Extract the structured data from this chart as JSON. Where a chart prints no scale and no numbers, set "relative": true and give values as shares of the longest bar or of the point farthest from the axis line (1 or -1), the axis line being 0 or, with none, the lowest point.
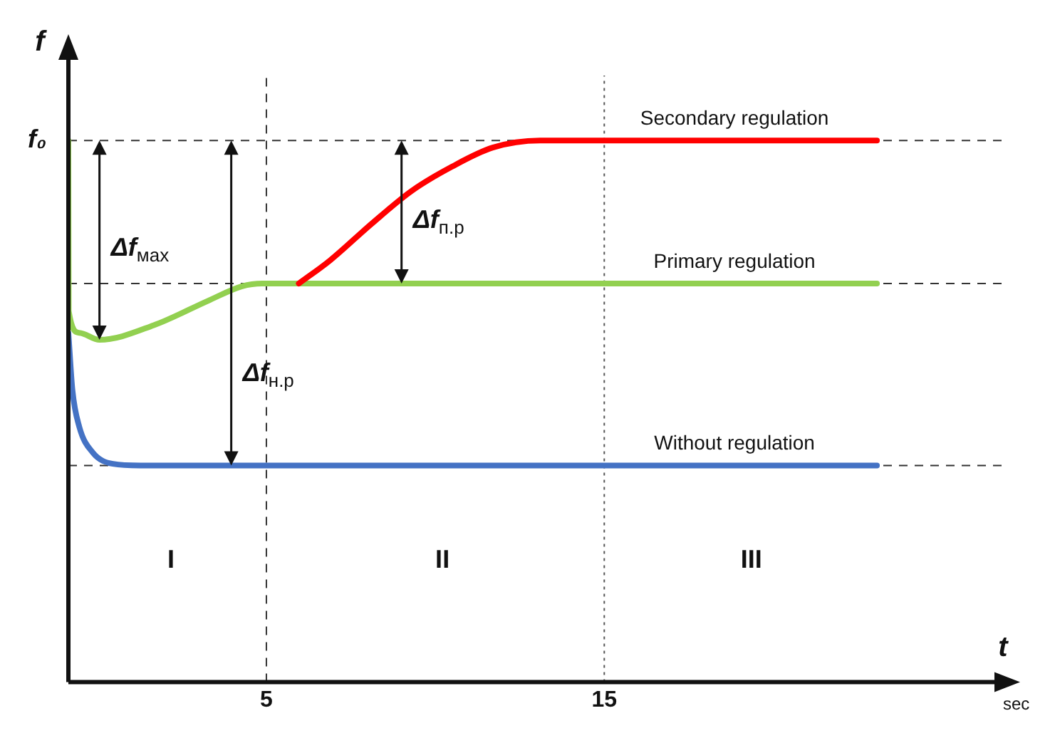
{
  "chart_data": {
    "type": "line",
    "relative": true,
    "xlabel": "t",
    "ylabel": "f",
    "xlim": [
      -0.86,
      26.8
    ],
    "xticks": [
      5,
      15
    ],
    "grid": false,
    "series": [
      {
        "name": "Secondary regulation",
        "color": "#ff0000",
        "x": [
          5.96,
          6.89,
          8.09,
          9.3,
          10.5,
          11.7,
          13.1,
          23.07
        ],
        "values": [
          0.736,
          0.779,
          0.845,
          0.907,
          0.952,
          0.987,
          1,
          1
        ]
      },
      {
        "name": "Primary regulation",
        "color": "#92d050",
        "x": [
          -0.86,
          -0.85,
          -0.54,
          0.06,
          1.67,
          3.27,
          4.28,
          4.88,
          23.07
        ],
        "values": [
          1,
          0.685,
          0.645,
          0.632,
          0.659,
          0.704,
          0.731,
          0.736,
          0.736
        ]
      },
      {
        "name": "Without regulation",
        "color": "#4472c4",
        "x": [
          -0.86,
          -0.74,
          -0.54,
          -0.14,
          0.46,
          1.27,
          23.07
        ],
        "values": [
          0.645,
          0.539,
          0.472,
          0.424,
          0.403,
          0.4,
          0.4
        ]
      }
    ],
    "ref_lines": [
      {
        "axis": "y",
        "value": 1,
        "label": "f₀",
        "color": "#333333",
        "line_style": "dashed"
      },
      {
        "axis": "y",
        "value": 0.736,
        "color": "#333333",
        "line_style": "dashed"
      },
      {
        "axis": "y",
        "value": 0.4,
        "color": "#333333",
        "line_style": "dashed"
      },
      {
        "axis": "x",
        "value": 5,
        "color": "#333333",
        "line_style": "dashed"
      },
      {
        "axis": "x",
        "value": 15,
        "color": "#555555",
        "line_style": "dotted"
      }
    ],
    "annotations": [
      {
        "text": "Δf$_{мах}$",
        "x": 0.06,
        "y": 0.632
      },
      {
        "text": "Δf$_{н.р}$",
        "x": 3.96,
        "y": 0.4
      },
      {
        "text": "Δf$_{п.р}$",
        "x": 9.0,
        "y": 0.736
      },
      "I",
      "II",
      "III",
      "sec"
    ]
  }
}
